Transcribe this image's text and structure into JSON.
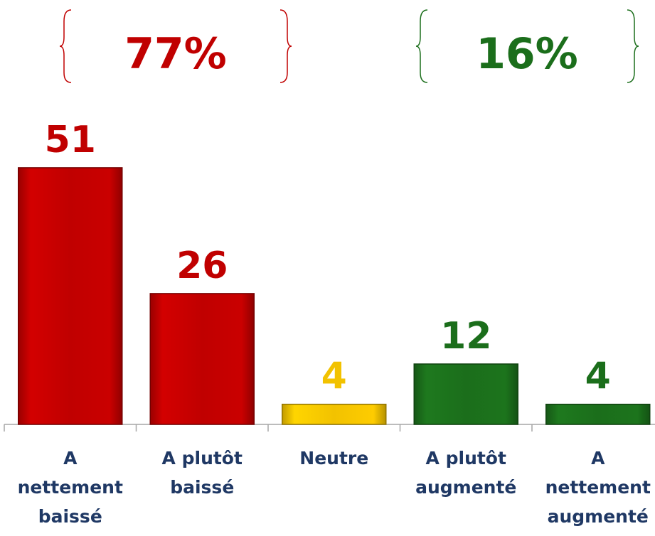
{
  "chart_data": {
    "type": "bar",
    "categories": [
      "A nettement baissé",
      "A plutôt baissé",
      "Neutre",
      "A plutôt augmenté",
      "A nettement augmenté"
    ],
    "values": [
      51,
      26,
      4,
      12,
      4
    ],
    "colors": [
      "#c00000",
      "#c00000",
      "#f2c200",
      "#1b6e1b",
      "#1b6e1b"
    ],
    "annotations": [
      {
        "text": "77%",
        "color": "#c00000"
      },
      {
        "text": "16%",
        "color": "#1b6e1b"
      }
    ]
  }
}
